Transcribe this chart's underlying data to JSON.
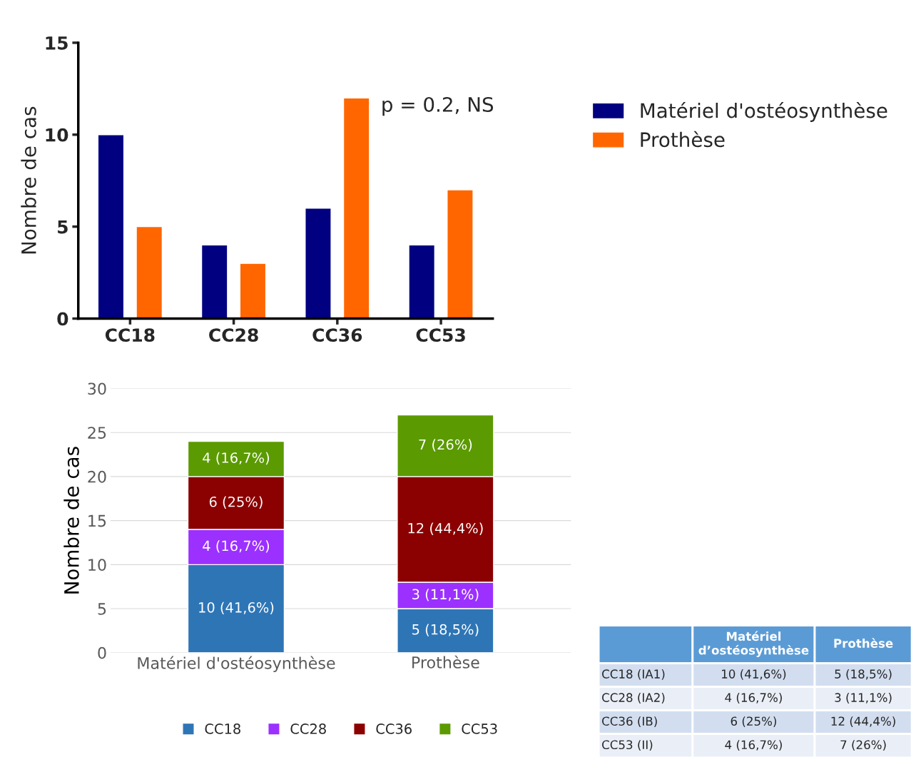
{
  "chart_data": [
    {
      "type": "bar",
      "categories": [
        "CC18",
        "CC28",
        "CC36",
        "CC53"
      ],
      "ylabel": "Nombre de cas",
      "ylim": [
        0,
        15
      ],
      "yticks": [
        0,
        5,
        10,
        15
      ],
      "grid": false,
      "legend": "right",
      "annotations": [
        "p = 0.2, NS"
      ],
      "series": [
        {
          "name": "Matériel d'ostéosynthèse",
          "color": "#000080",
          "values": [
            10,
            4,
            6,
            4
          ]
        },
        {
          "name": "Prothèse",
          "color": "#ff6600",
          "values": [
            5,
            3,
            12,
            7
          ]
        }
      ]
    },
    {
      "type": "bar",
      "stacked": true,
      "categories": [
        "Matériel d'ostéosynthèse",
        "Prothèse"
      ],
      "ylabel": "Nombre de cas",
      "ylim": [
        0,
        30
      ],
      "yticks": [
        0,
        5,
        10,
        15,
        20,
        25,
        30
      ],
      "grid": "y",
      "legend": "bottom",
      "series": [
        {
          "name": "CC18",
          "color": "#2e75b6",
          "values": [
            10,
            5
          ],
          "value_labels": [
            "10 (41,6%)",
            "5 (18,5%)"
          ]
        },
        {
          "name": "CC28",
          "color": "#9b30ff",
          "values": [
            4,
            3
          ],
          "value_labels": [
            "4 (16,7%)",
            "3 (11,1%)"
          ]
        },
        {
          "name": "CC36",
          "color": "#8b0000",
          "values": [
            6,
            12
          ],
          "value_labels": [
            "6 (25%)",
            "12 (44,4%)"
          ]
        },
        {
          "name": "CC53",
          "color": "#5b9a00",
          "values": [
            4,
            7
          ],
          "value_labels": [
            "4 (16,7%)",
            "7 (26%)"
          ]
        }
      ]
    },
    {
      "type": "other",
      "categories": [
        "Matériel d’ostéosynthèse",
        "Prothèse"
      ],
      "y_categories": [
        "CC18 (IA1)",
        "CC28 (IA2)",
        "CC36 (IB)",
        "CC53 (II)"
      ],
      "cell_labels": [
        [
          "10 (41,6%)",
          "5 (18,5%)"
        ],
        [
          "4 (16,7%)",
          "3 (11,1%)"
        ],
        [
          "6 (25%)",
          "12 (44,4%)"
        ],
        [
          "4 (16,7%)",
          "7 (26%)"
        ]
      ]
    }
  ]
}
